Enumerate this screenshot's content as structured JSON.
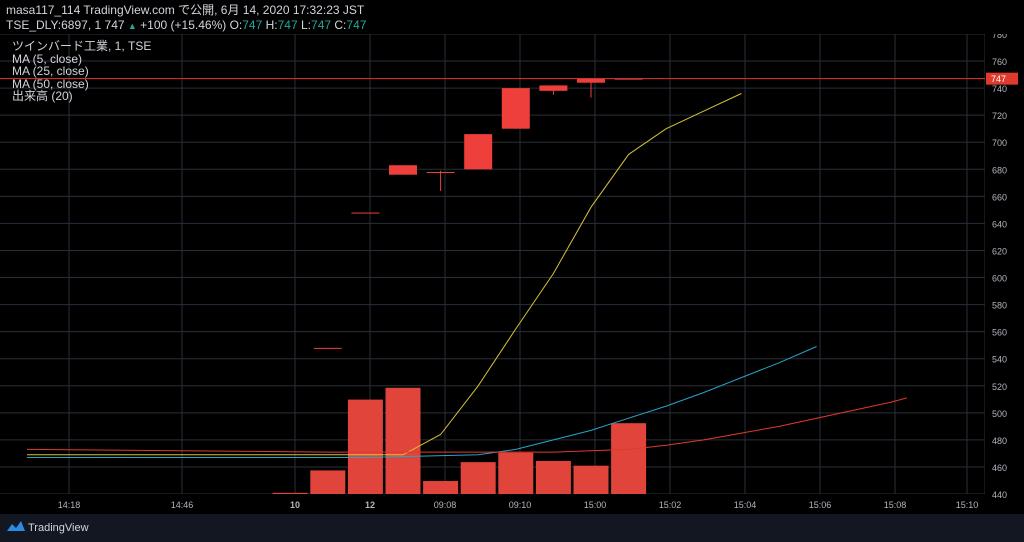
{
  "header": {
    "line1": "masa117_114 TradingView.com で公開, 6月 14, 2020 17:32:23 JST",
    "symbol": "TSE_DLY:6897, 1",
    "last": "747",
    "triangle": "▲",
    "change": "+100 (+15.46%)",
    "o_label": "O:",
    "o_value": "747",
    "h_label": "H:",
    "h_value": "747",
    "l_label": "L:",
    "l_value": "747",
    "c_label": "C:",
    "c_value": "747"
  },
  "legend": [
    "ツインバード工業, 1, TSE",
    "MA (5, close)",
    "MA (25, close)",
    "MA (50, close)",
    "出来高 (20)"
  ],
  "footer": {
    "brand": "TradingView"
  },
  "colors": {
    "background": "#000000",
    "grid": "#2a2e39",
    "candle": "#ef3f3a",
    "volume": "#e0443a",
    "ma5": "#d4c23a",
    "ma25": "#26a6c8",
    "ma50": "#e03a2e",
    "price_line": "#e03a2e",
    "axis_text": "#b2b5be"
  },
  "chart_data": {
    "type": "candlestick",
    "ylim": [
      440,
      780
    ],
    "y_ticks": [
      440,
      460,
      480,
      500,
      520,
      540,
      560,
      580,
      600,
      620,
      640,
      660,
      680,
      700,
      720,
      740,
      760,
      780
    ],
    "x_ticks": [
      "14:18",
      "14:46",
      "10",
      "12",
      "09:08",
      "09:10",
      "15:00",
      "15:02",
      "15:04",
      "15:06",
      "15:08",
      "15:10"
    ],
    "last_price_label": "747",
    "last_price": 747,
    "candles": [
      {
        "i": 8,
        "open": 548,
        "high": 548,
        "low": 548,
        "close": 548
      },
      {
        "i": 9,
        "open": 648,
        "high": 648,
        "low": 648,
        "close": 648
      },
      {
        "i": 10,
        "open": 683,
        "high": 683,
        "low": 676,
        "close": 676
      },
      {
        "i": 11,
        "open": 678,
        "high": 679,
        "low": 664,
        "close": 678
      },
      {
        "i": 12,
        "open": 706,
        "high": 706,
        "low": 680,
        "close": 680
      },
      {
        "i": 13,
        "open": 740,
        "high": 740,
        "low": 710,
        "close": 710
      },
      {
        "i": 14,
        "open": 742,
        "high": 742,
        "low": 735,
        "close": 738
      },
      {
        "i": 15,
        "open": 747,
        "high": 747,
        "low": 733,
        "close": 744
      },
      {
        "i": 16,
        "open": 747,
        "high": 747,
        "low": 747,
        "close": 747
      }
    ],
    "volume": {
      "ylim": [
        0,
        100
      ],
      "bars": [
        {
          "i": 7,
          "value": 1
        },
        {
          "i": 8,
          "value": 20
        },
        {
          "i": 9,
          "value": 80
        },
        {
          "i": 10,
          "value": 90
        },
        {
          "i": 11,
          "value": 11
        },
        {
          "i": 12,
          "value": 27
        },
        {
          "i": 13,
          "value": 35
        },
        {
          "i": 14,
          "value": 28
        },
        {
          "i": 15,
          "value": 24
        },
        {
          "i": 16,
          "value": 60
        }
      ]
    },
    "series": [
      {
        "key": "ma5",
        "points": [
          [
            0,
            469
          ],
          [
            2,
            469
          ],
          [
            4,
            469
          ],
          [
            6,
            469
          ],
          [
            8,
            469
          ],
          [
            9,
            469
          ],
          [
            10,
            469
          ],
          [
            11,
            484
          ],
          [
            12,
            520
          ],
          [
            13,
            562
          ],
          [
            14,
            603
          ],
          [
            15,
            652
          ],
          [
            16,
            691
          ],
          [
            17,
            710
          ],
          [
            18,
            723
          ],
          [
            19,
            736
          ]
        ]
      },
      {
        "key": "ma25",
        "points": [
          [
            0,
            467
          ],
          [
            3,
            467
          ],
          [
            6,
            467
          ],
          [
            9,
            467
          ],
          [
            12,
            469
          ],
          [
            13,
            473
          ],
          [
            14,
            480
          ],
          [
            15,
            487
          ],
          [
            16,
            496
          ],
          [
            17,
            505
          ],
          [
            18,
            515
          ],
          [
            19,
            526
          ],
          [
            20,
            537
          ],
          [
            21,
            549
          ]
        ]
      },
      {
        "key": "ma50",
        "points": [
          [
            0,
            473
          ],
          [
            4,
            472
          ],
          [
            8,
            471
          ],
          [
            11,
            471
          ],
          [
            14,
            471
          ],
          [
            16,
            473
          ],
          [
            17,
            476
          ],
          [
            18,
            480
          ],
          [
            19,
            485
          ],
          [
            20,
            490
          ],
          [
            21,
            496
          ],
          [
            22,
            502
          ],
          [
            23,
            508
          ],
          [
            23.4,
            511
          ]
        ]
      }
    ]
  }
}
